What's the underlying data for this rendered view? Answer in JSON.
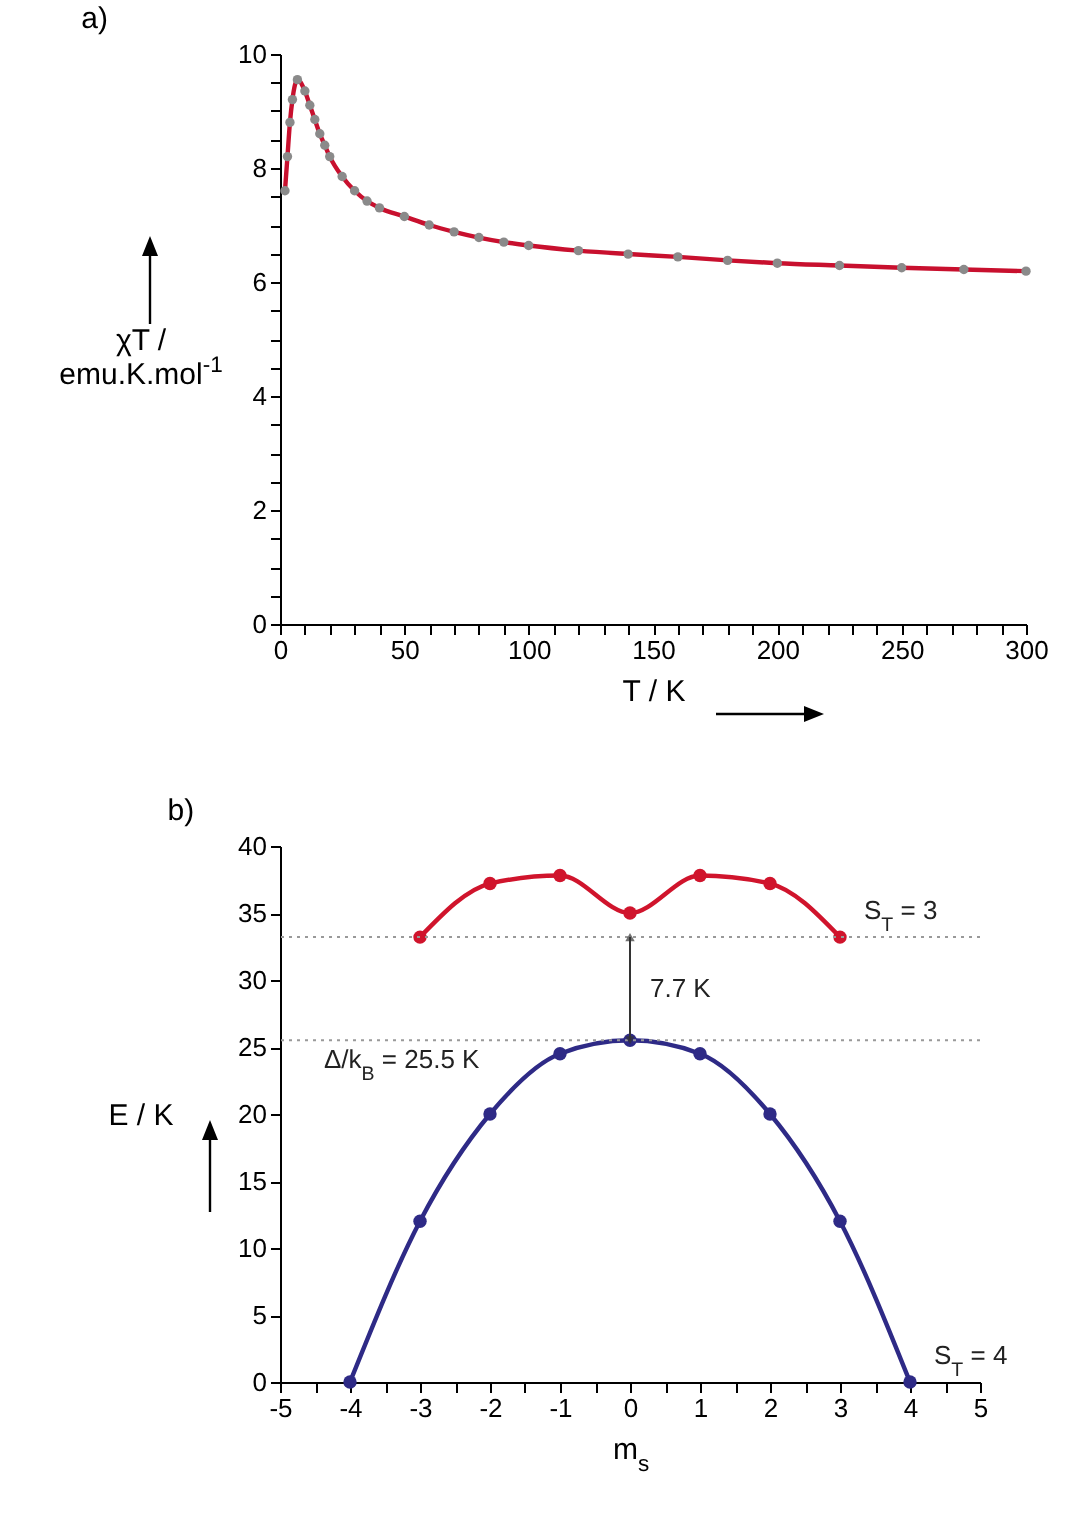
{
  "chart_data": [
    {
      "type": "scatter",
      "title": "a)",
      "xlabel": "T / K",
      "ylabel": "χT /\nemu.K.mol$^{-1}$",
      "x": [
        2,
        3,
        4,
        5,
        7,
        10,
        12,
        14,
        16,
        18,
        20,
        25,
        30,
        35,
        40,
        50,
        60,
        70,
        80,
        90,
        100,
        120,
        140,
        160,
        180,
        200,
        225,
        250,
        275,
        300
      ],
      "series": [
        {
          "color": "#8a8a8a",
          "values": [
            7.6,
            8.2,
            8.8,
            9.2,
            9.55,
            9.35,
            9.1,
            8.85,
            8.6,
            8.4,
            8.2,
            7.85,
            7.6,
            7.42,
            7.3,
            7.15,
            7.0,
            6.88,
            6.78,
            6.7,
            6.64,
            6.55,
            6.49,
            6.44,
            6.38,
            6.33,
            6.29,
            6.25,
            6.22,
            6.19
          ]
        },
        {
          "type": "line",
          "marker": "none",
          "color": "#c8102e",
          "values": [
            7.6,
            8.2,
            8.8,
            9.2,
            9.55,
            9.35,
            9.1,
            8.85,
            8.6,
            8.4,
            8.2,
            7.85,
            7.6,
            7.42,
            7.3,
            7.15,
            7.0,
            6.88,
            6.78,
            6.7,
            6.64,
            6.55,
            6.49,
            6.44,
            6.38,
            6.33,
            6.29,
            6.25,
            6.22,
            6.19
          ]
        }
      ],
      "marker": "circle",
      "xlim": [
        0,
        300
      ],
      "ylim": [
        0,
        10
      ],
      "xticks": [
        0,
        {
          "value": 10,
          "label": null
        },
        {
          "value": 20,
          "label": null
        },
        {
          "value": 30,
          "label": null
        },
        {
          "value": 40,
          "label": null
        },
        50,
        {
          "value": 60,
          "label": null
        },
        {
          "value": 70,
          "label": null
        },
        {
          "value": 80,
          "label": null
        },
        {
          "value": 90,
          "label": null
        },
        100,
        {
          "value": 110,
          "label": null
        },
        {
          "value": 120,
          "label": null
        },
        {
          "value": 130,
          "label": null
        },
        {
          "value": 140,
          "label": null
        },
        150,
        {
          "value": 160,
          "label": null
        },
        {
          "value": 170,
          "label": null
        },
        {
          "value": 180,
          "label": null
        },
        {
          "value": 190,
          "label": null
        },
        200,
        {
          "value": 210,
          "label": null
        },
        {
          "value": 220,
          "label": null
        },
        {
          "value": 230,
          "label": null
        },
        {
          "value": 240,
          "label": null
        },
        250,
        {
          "value": 260,
          "label": null
        },
        {
          "value": 270,
          "label": null
        },
        {
          "value": 280,
          "label": null
        },
        {
          "value": 290,
          "label": null
        },
        300
      ],
      "yticks": [
        0,
        {
          "value": 0.5,
          "label": null
        },
        {
          "value": 1,
          "label": null
        },
        {
          "value": 1.5,
          "label": null
        },
        2,
        {
          "value": 2.5,
          "label": null
        },
        {
          "value": 3,
          "label": null
        },
        {
          "value": 3.5,
          "label": null
        },
        4,
        {
          "value": 4.5,
          "label": null
        },
        {
          "value": 5,
          "label": null
        },
        {
          "value": 5.5,
          "label": null
        },
        6,
        {
          "value": 6.5,
          "label": null
        },
        {
          "value": 7,
          "label": null
        },
        {
          "value": 7.5,
          "label": null
        },
        8,
        {
          "value": 8.5,
          "label": null
        },
        {
          "value": 9,
          "label": null
        },
        {
          "value": 9.5,
          "label": null
        },
        10
      ]
    },
    {
      "type": "line",
      "title": "b)",
      "xlabel": "m$_{s}$",
      "ylabel": "E / K",
      "marker": "circle",
      "series": [
        {
          "name": "S$_{T}$ = 3",
          "color": "#d0142c",
          "x": [
            -3,
            -2,
            -1,
            0,
            1,
            2,
            3
          ],
          "values": [
            33.2,
            37.2,
            37.8,
            35,
            37.8,
            37.2,
            33.2
          ]
        },
        {
          "name": "S$_{T}$ = 4",
          "color": "#2e2a86",
          "x": [
            -4,
            -3,
            -2,
            -1,
            0,
            1,
            2,
            3,
            4
          ],
          "values": [
            0,
            12,
            20,
            24.5,
            25.5,
            24.5,
            20,
            12,
            0
          ]
        }
      ],
      "xlim": [
        -5,
        5
      ],
      "ylim": [
        0,
        40
      ],
      "xticks": [
        -5,
        {
          "value": -4.5,
          "label": null
        },
        -4,
        {
          "value": -3.5,
          "label": null
        },
        -3,
        {
          "value": -2.5,
          "label": null
        },
        -2,
        {
          "value": -1.5,
          "label": null
        },
        -1,
        {
          "value": -0.5,
          "label": null
        },
        0,
        {
          "value": 0.5,
          "label": null
        },
        1,
        {
          "value": 1.5,
          "label": null
        },
        2,
        {
          "value": 2.5,
          "label": null
        },
        3,
        {
          "value": 3.5,
          "label": null
        },
        4,
        {
          "value": 4.5,
          "label": null
        },
        5
      ],
      "yticks": [
        0,
        5,
        10,
        15,
        20,
        25,
        30,
        35,
        40
      ],
      "ref_lines": [
        {
          "axis": "y",
          "value": 33.2,
          "color": "#999999",
          "line_style": "dotted"
        },
        {
          "axis": "y",
          "value": 25.5,
          "label": "Δ/k$_{B}$ = 25.5 K",
          "color": "#999999",
          "line_style": "dotted"
        }
      ],
      "annotations": [
        "7.7 K"
      ]
    }
  ]
}
